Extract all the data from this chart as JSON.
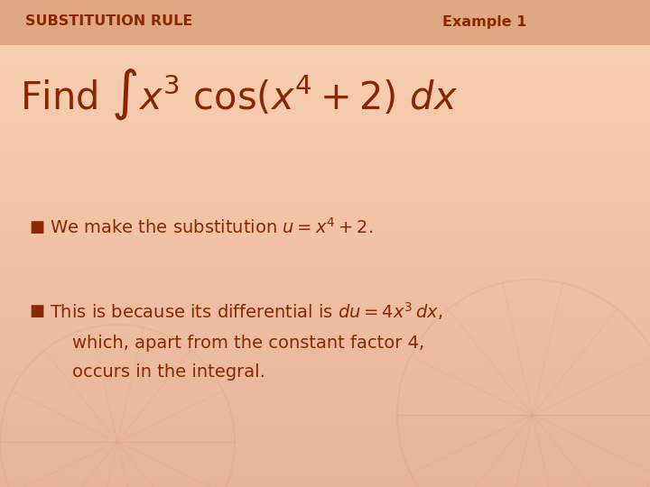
{
  "background_color": "#F2C4A0",
  "header_bar_color": "#E0A882",
  "header_top_color": "#F0D0B8",
  "title_left": "SUBSTITUTION RULE",
  "title_right": "Example 1",
  "title_color": "#8B2800",
  "title_fontsize": 11.5,
  "main_formula_color": "#8B2500",
  "main_formula_fontsize": 30,
  "bullet_color": "#8B2800",
  "body_fontsize": 14,
  "fig_width": 7.2,
  "fig_height": 5.4,
  "dpi": 100
}
